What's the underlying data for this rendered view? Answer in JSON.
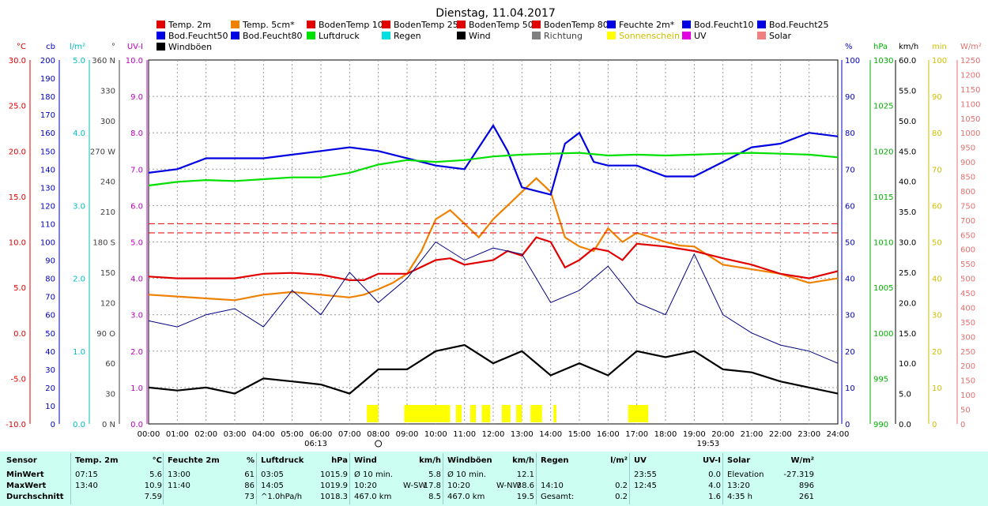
{
  "chart_data": {
    "type": "line",
    "title": "Dienstag, 11.04.2017",
    "x_ticks": [
      "00:00",
      "01:00",
      "02:00",
      "03:00",
      "04:00",
      "05:00",
      "06:00",
      "07:00",
      "08:00",
      "09:00",
      "10:00",
      "11:00",
      "12:00",
      "13:00",
      "14:00",
      "15:00",
      "16:00",
      "17:00",
      "18:00",
      "19:00",
      "20:00",
      "21:00",
      "22:00",
      "23:00",
      "24:00"
    ],
    "sunrise": "06:13",
    "sunset": "19:53",
    "legend": [
      {
        "name": "Temp. 2m",
        "color": "#e00000"
      },
      {
        "name": "Temp. 5cm*",
        "color": "#f08000"
      },
      {
        "name": "BodenTemp 10",
        "color": "#e00000"
      },
      {
        "name": "BodenTemp 25",
        "color": "#e00000"
      },
      {
        "name": "BodenTemp 50",
        "color": "#e00000"
      },
      {
        "name": "BodenTemp 80",
        "color": "#e00000"
      },
      {
        "name": "Feuchte 2m*",
        "color": "#0000e0"
      },
      {
        "name": "Bod.Feucht10",
        "color": "#0000e0"
      },
      {
        "name": "Bod.Feucht25",
        "color": "#0000e0"
      },
      {
        "name": "Bod.Feucht50",
        "color": "#0000e0"
      },
      {
        "name": "Bod.Feucht80",
        "color": "#0000e0"
      },
      {
        "name": "Luftdruck",
        "color": "#00e000"
      },
      {
        "name": "Regen",
        "color": "#00e0e0"
      },
      {
        "name": "Wind",
        "color": "#000000"
      },
      {
        "name": "Richtung",
        "color": "#808080"
      },
      {
        "name": "Sonnenschein",
        "color": "#ffff00"
      },
      {
        "name": "UV",
        "color": "#e000e0"
      },
      {
        "name": "Solar",
        "color": "#f08080"
      },
      {
        "name": "Windböen",
        "color": "#000000"
      }
    ],
    "axes": [
      {
        "unit": "°C",
        "color": "#e00000",
        "ticks": [
          "30.0",
          "25.0",
          "20.0",
          "15.0",
          "10.0",
          "5.0",
          "0.0",
          "-5.0",
          "-10.0"
        ]
      },
      {
        "unit": "cb",
        "color": "#0000c0",
        "ticks": [
          "200",
          "190",
          "180",
          "170",
          "160",
          "150",
          "140",
          "130",
          "120",
          "110",
          "100",
          "90",
          "80",
          "70",
          "60",
          "50",
          "40",
          "30",
          "20",
          "10",
          "0"
        ]
      },
      {
        "unit": "l/m²",
        "color": "#00c0c0",
        "ticks": [
          "5.0",
          "4.0",
          "3.0",
          "2.0",
          "1.0",
          "0.0"
        ]
      },
      {
        "unit": "°",
        "color": "#404040",
        "ticks": [
          "360 N",
          "330",
          "300",
          "270 W",
          "240",
          "210",
          "180 S",
          "150",
          "120",
          "90 O",
          "60",
          "30",
          "0 N"
        ]
      },
      {
        "unit": "UV-I",
        "color": "#c000c0",
        "ticks": [
          "10.0",
          "9.0",
          "8.0",
          "7.0",
          "6.0",
          "5.0",
          "4.0",
          "3.0",
          "2.0",
          "1.0",
          "0.0"
        ]
      },
      {
        "unit": "%",
        "color": "#0000c0",
        "ticks": [
          "100",
          "90",
          "80",
          "70",
          "60",
          "50",
          "40",
          "30",
          "20",
          "10",
          "0"
        ]
      },
      {
        "unit": "hPa",
        "color": "#00b000",
        "ticks": [
          "1030",
          "1025",
          "1020",
          "1015",
          "1010",
          "1005",
          "1000",
          "995",
          "990"
        ]
      },
      {
        "unit": "km/h",
        "color": "#000000",
        "ticks": [
          "60.0",
          "55.0",
          "50.0",
          "45.0",
          "40.0",
          "35.0",
          "30.0",
          "25.0",
          "20.0",
          "15.0",
          "10.0",
          "5.0",
          "0.0"
        ]
      },
      {
        "unit": "min",
        "color": "#d0c000",
        "ticks": [
          "100",
          "90",
          "80",
          "70",
          "60",
          "50",
          "40",
          "30",
          "20",
          "10",
          "0"
        ]
      },
      {
        "unit": "W/m²",
        "color": "#e07070",
        "ticks": [
          "1250",
          "1200",
          "1150",
          "1100",
          "1050",
          "1000",
          "950",
          "900",
          "850",
          "800",
          "750",
          "700",
          "650",
          "600",
          "550",
          "500",
          "450",
          "400",
          "350",
          "300",
          "250",
          "200",
          "150",
          "100",
          "50",
          "0"
        ]
      }
    ],
    "series": [
      {
        "name": "Temp. 5cm*",
        "unit": "°C",
        "color": "#f08000",
        "points": [
          [
            0,
            4.2
          ],
          [
            1,
            4.0
          ],
          [
            2,
            3.8
          ],
          [
            3,
            3.6
          ],
          [
            4,
            4.2
          ],
          [
            5,
            4.5
          ],
          [
            6,
            4.2
          ],
          [
            7,
            3.9
          ],
          [
            7.5,
            4.2
          ],
          [
            8,
            4.8
          ],
          [
            8.5,
            5.5
          ],
          [
            9,
            6.5
          ],
          [
            9.5,
            9.0
          ],
          [
            10,
            12.5
          ],
          [
            10.5,
            13.5
          ],
          [
            11,
            12.0
          ],
          [
            11.5,
            10.5
          ],
          [
            12,
            12.5
          ],
          [
            12.5,
            14.0
          ],
          [
            13,
            15.5
          ],
          [
            13.5,
            17.0
          ],
          [
            14,
            15.5
          ],
          [
            14.5,
            10.5
          ],
          [
            15,
            9.5
          ],
          [
            15.5,
            9.0
          ],
          [
            16,
            11.5
          ],
          [
            16.5,
            10.0
          ],
          [
            17,
            11.0
          ],
          [
            17.5,
            10.5
          ],
          [
            18,
            10.0
          ],
          [
            18.5,
            9.6
          ],
          [
            19,
            9.5
          ],
          [
            19.5,
            8.5
          ],
          [
            20,
            7.5
          ],
          [
            21,
            7.0
          ],
          [
            22,
            6.5
          ],
          [
            23,
            5.5
          ],
          [
            24,
            6.0
          ]
        ]
      },
      {
        "name": "Temp. 2m",
        "unit": "°C",
        "color": "#e00000",
        "points": [
          [
            0,
            6.2
          ],
          [
            1,
            6.0
          ],
          [
            2,
            6.0
          ],
          [
            3,
            6.0
          ],
          [
            4,
            6.5
          ],
          [
            5,
            6.6
          ],
          [
            6,
            6.4
          ],
          [
            7,
            5.8
          ],
          [
            7.5,
            5.8
          ],
          [
            8,
            6.5
          ],
          [
            9,
            6.5
          ],
          [
            10,
            8.0
          ],
          [
            10.5,
            8.2
          ],
          [
            11,
            7.5
          ],
          [
            12,
            8.0
          ],
          [
            12.5,
            9.0
          ],
          [
            13,
            8.5
          ],
          [
            13.5,
            10.5
          ],
          [
            14,
            10.0
          ],
          [
            14.5,
            7.2
          ],
          [
            15,
            8.0
          ],
          [
            15.5,
            9.3
          ],
          [
            16,
            9.0
          ],
          [
            16.5,
            8.0
          ],
          [
            17,
            9.8
          ],
          [
            18,
            9.5
          ],
          [
            19,
            9.0
          ],
          [
            20,
            8.2
          ],
          [
            21,
            7.5
          ],
          [
            22,
            6.5
          ],
          [
            23,
            6.0
          ],
          [
            24,
            6.8
          ]
        ]
      },
      {
        "name": "Feuchte 2m*",
        "unit": "%",
        "color": "#0000e0",
        "points": [
          [
            0,
            69
          ],
          [
            1,
            70
          ],
          [
            2,
            73
          ],
          [
            3,
            73
          ],
          [
            4,
            73
          ],
          [
            5,
            74
          ],
          [
            6,
            75
          ],
          [
            7,
            76
          ],
          [
            8,
            75
          ],
          [
            9,
            73
          ],
          [
            10,
            71
          ],
          [
            11,
            70
          ],
          [
            12,
            82
          ],
          [
            12.5,
            75
          ],
          [
            13,
            65
          ],
          [
            14,
            63
          ],
          [
            14.5,
            77
          ],
          [
            15,
            80
          ],
          [
            15.5,
            72
          ],
          [
            16,
            71
          ],
          [
            17,
            71
          ],
          [
            18,
            68
          ],
          [
            19,
            68
          ],
          [
            20,
            72
          ],
          [
            21,
            76
          ],
          [
            22,
            77
          ],
          [
            23,
            80
          ],
          [
            24,
            79
          ]
        ]
      },
      {
        "name": "Luftdruck",
        "unit": "hPa",
        "color": "#00e000",
        "points": [
          [
            0,
            1016.2
          ],
          [
            1,
            1016.6
          ],
          [
            2,
            1016.8
          ],
          [
            3,
            1016.7
          ],
          [
            4,
            1016.9
          ],
          [
            5,
            1017.1
          ],
          [
            6,
            1017.1
          ],
          [
            7,
            1017.6
          ],
          [
            8,
            1018.5
          ],
          [
            9,
            1019.0
          ],
          [
            10,
            1018.8
          ],
          [
            11,
            1019.0
          ],
          [
            12,
            1019.4
          ],
          [
            13,
            1019.6
          ],
          [
            14,
            1019.7
          ],
          [
            15,
            1019.8
          ],
          [
            16,
            1019.5
          ],
          [
            17,
            1019.6
          ],
          [
            18,
            1019.5
          ],
          [
            19,
            1019.6
          ],
          [
            20,
            1019.7
          ],
          [
            21,
            1019.8
          ],
          [
            22,
            1019.7
          ],
          [
            23,
            1019.6
          ],
          [
            24,
            1019.3
          ]
        ]
      },
      {
        "name": "Wind",
        "unit": "km/h",
        "color": "#000000",
        "points": [
          [
            0,
            6
          ],
          [
            1,
            5.5
          ],
          [
            2,
            6
          ],
          [
            3,
            5
          ],
          [
            4,
            7.5
          ],
          [
            5,
            7
          ],
          [
            6,
            6.5
          ],
          [
            7,
            5
          ],
          [
            8,
            9
          ],
          [
            9,
            9
          ],
          [
            10,
            12
          ],
          [
            11,
            13
          ],
          [
            12,
            10
          ],
          [
            13,
            12
          ],
          [
            14,
            8
          ],
          [
            15,
            10
          ],
          [
            16,
            8
          ],
          [
            17,
            12
          ],
          [
            18,
            11
          ],
          [
            19,
            12
          ],
          [
            20,
            9
          ],
          [
            21,
            8.5
          ],
          [
            22,
            7
          ],
          [
            23,
            6
          ],
          [
            24,
            5
          ]
        ]
      },
      {
        "name": "Windböen",
        "unit": "km/h",
        "color": "#000080",
        "points": [
          [
            0,
            17
          ],
          [
            1,
            16
          ],
          [
            2,
            18
          ],
          [
            3,
            19
          ],
          [
            4,
            16
          ],
          [
            5,
            22
          ],
          [
            6,
            18
          ],
          [
            7,
            25
          ],
          [
            8,
            20
          ],
          [
            9,
            24
          ],
          [
            10,
            30
          ],
          [
            11,
            27
          ],
          [
            12,
            29
          ],
          [
            13,
            28
          ],
          [
            14,
            20
          ],
          [
            15,
            22
          ],
          [
            16,
            26
          ],
          [
            17,
            20
          ],
          [
            18,
            18
          ],
          [
            19,
            28
          ],
          [
            20,
            18
          ],
          [
            21,
            15
          ],
          [
            22,
            13
          ],
          [
            23,
            12
          ],
          [
            24,
            10
          ]
        ]
      },
      {
        "name": "BodenTemp 50",
        "unit": "°C",
        "color": "#e00000",
        "points": [
          [
            0,
            12.0
          ],
          [
            24,
            12.0
          ]
        ]
      },
      {
        "name": "BodenTemp 80",
        "unit": "°C",
        "color": "#e00000",
        "points": [
          [
            0,
            11.0
          ],
          [
            24,
            11.0
          ]
        ]
      }
    ]
  },
  "stats": {
    "columns": [
      {
        "title": "Sensor",
        "unit": "",
        "rows": [
          {
            "label": "MinWert"
          },
          {
            "label": "MaxWert"
          },
          {
            "label": "Durchschnitt"
          }
        ]
      },
      {
        "title": "Temp. 2m",
        "unit": "°C",
        "rows": [
          {
            "time": "07:15",
            "value": "5.6"
          },
          {
            "time": "13:40",
            "value": "10.9"
          },
          {
            "time": "",
            "value": "7.59"
          }
        ]
      },
      {
        "title": "Feuchte 2m",
        "unit": "%",
        "rows": [
          {
            "time": "13:00",
            "value": "61"
          },
          {
            "time": "11:40",
            "value": "86"
          },
          {
            "time": "",
            "value": "73"
          }
        ]
      },
      {
        "title": "Luftdruck",
        "unit": "hPa",
        "rows": [
          {
            "time": "03:05",
            "value": "1015.9"
          },
          {
            "time": "14:05",
            "value": "1019.9"
          },
          {
            "time": "^1.0hPa/h",
            "value": "1018.3"
          }
        ]
      },
      {
        "title": "Wind",
        "unit": "km/h",
        "rows": [
          {
            "time": "Ø 10 min.",
            "extra": "",
            "value": "5.8"
          },
          {
            "time": "10:20",
            "extra": "W-SW",
            "value": "17.8"
          },
          {
            "time": "467.0 km",
            "extra": "",
            "value": "8.5"
          }
        ]
      },
      {
        "title": "Windböen",
        "unit": "km/h",
        "rows": [
          {
            "time": "Ø 10 min.",
            "extra": "",
            "value": "12.1"
          },
          {
            "time": "10:20",
            "extra": "W-NW",
            "value": "38.6"
          },
          {
            "time": "467.0 km",
            "extra": "",
            "value": "19.5"
          }
        ]
      },
      {
        "title": "Regen",
        "unit": "l/m²",
        "rows": [
          {
            "time": "",
            "value": ""
          },
          {
            "time": "14:10",
            "value": "0.2"
          },
          {
            "time": "Gesamt:",
            "value": "0.2"
          }
        ]
      },
      {
        "title": "UV",
        "unit": "UV-I",
        "rows": [
          {
            "time": "23:55",
            "value": "0.0"
          },
          {
            "time": "12:45",
            "value": "4.0"
          },
          {
            "time": "",
            "value": "1.6"
          }
        ]
      },
      {
        "title": "Solar",
        "unit": "W/m²",
        "rows": [
          {
            "time": "Elevation",
            "value": "-27.319"
          },
          {
            "time": "13:20",
            "value": "896"
          },
          {
            "time": "4:35 h",
            "value": "261"
          }
        ]
      }
    ]
  }
}
